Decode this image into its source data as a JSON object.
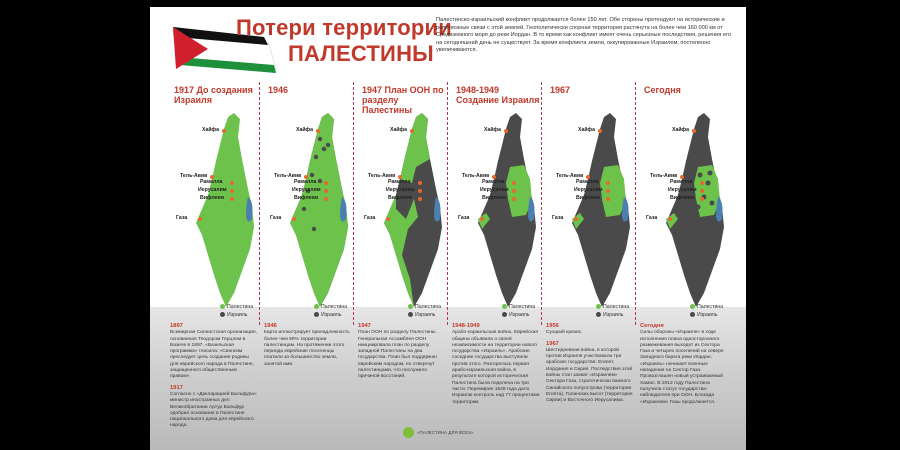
{
  "title_line1": "Потери территории",
  "title_line2": "ПАЛЕСТИНЫ",
  "intro": "Палестинско-израильский конфликт продолжается более 150 лет. Обе стороны претендуют на исторические и религиозные связи с этой землей. Геополитически спорная территория растянута на более чем 160 000 км от Средиземного моря до реки Иордан. В то время как конфликт имеет очень серьезные последствия, решения его на сегодняшний день не существует. За время конфликта земли, оккупированные Израилем, постепенно увеличиваются.",
  "colors": {
    "palestine": "#6cc24a",
    "israel": "#4a4a4a",
    "accent": "#c0392b",
    "water": "#4a7fb0"
  },
  "legend": {
    "palestine": "Палестина",
    "israel": "Израиль"
  },
  "cities": {
    "haifa": "Хайфа",
    "telaviv": "Тель-Авив",
    "ramallah": "Рамалла",
    "jerusalem": "Иерусалим",
    "bethlehem": "Вифлеем",
    "gaza": "Газа"
  },
  "panels": [
    {
      "title": "1917 До создания Израиля"
    },
    {
      "title": "1946"
    },
    {
      "title": "1947 План ООН по разделу Палестины"
    },
    {
      "title": "1948-1949 Создание Израиля"
    },
    {
      "title": "1967"
    },
    {
      "title": "Сегодня"
    }
  ],
  "history": [
    {
      "year": "1897",
      "text": "Всемирная Сионистская организация, основанная Теодором Герцлем в Базеле в 1897, «Базельская программа» гласила: «Сионизм преследует цель создания родины для еврейского народа в Палестине, защищенного общественным правом».",
      "year2": "1917",
      "text2": "Согласно с «Декларацией Бальфура» министр иностранных дел Великобритании Артур Бальфур одобрил основание в Палестине национального дома для еврейского народа."
    },
    {
      "year": "1946",
      "text": "Карта иллюстрирует принадлежность более чем 90% территории палестинцам. На протяжении этого периода еврейские поселенцы платили за большинство земли, занятой ими."
    },
    {
      "year": "1947",
      "text": "План ООН по разделу Палестины. Генеральная Ассамблея ООН инициировала план по разделу западной Палестины на два государства. План был поддержан еврейским народом, но отвергнут палестинцами, что послужило причиной восстаний."
    },
    {
      "year": "1948-1949",
      "text": "Арабо-израильская война. Еврейская община объявила о своей независимости на территории нового государства «Израиль». Арабские соседние государства выступили против этого. Разгорелась первая арабо-израильская война, в результате которой историческая Палестина была поделена на три части. Перемирие 1949 года дало Израилю контроль над 77 процентами территории."
    },
    {
      "year": "1956",
      "text": "Суэцкий кризис.",
      "year2": "1967",
      "text2": "Шестидневная война, в которой против Израиля участвовали три арабских государства: Египет, Иордания и Сирия. Последствия этой войны стал захват «Израилем» Сектора Газа, стратегически важного Синайского полуострова (территория Египта), Голанских высот (территория Сирии) и Восточного Иерусалима."
    },
    {
      "year": "Сегодня",
      "text": "Силы обороны «Израиля» в ходе исполнения плана одностороннего размежевания выходят из Сектора Газа и четырех поселений на севере Западного берега реки Иордан. «Израиль» начинает военные нападения на Сектор Газа. Провозглашен новый устраиваемый Хамас. В 2012 году Палестина получила статус государства-наблюдателя при ООН. Блокада «Израилем» Газы продолжается."
    }
  ],
  "logo": "«ПАЛЕСТИНА ДЛЯ ВСЕХ»"
}
